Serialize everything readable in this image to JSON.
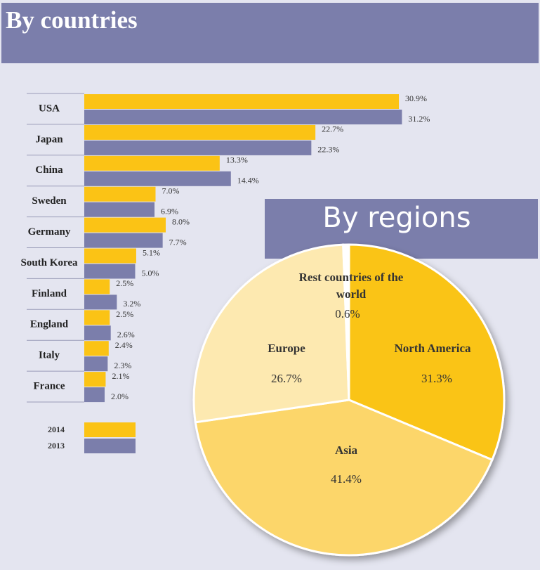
{
  "chart_data": [
    {
      "type": "hbar",
      "title": "By countries",
      "categories": [
        "USA",
        "Japan",
        "China",
        "Sweden",
        "Germany",
        "South Korea",
        "Finland",
        "England",
        "Italy",
        "France"
      ],
      "series": [
        {
          "name": "2014",
          "color": "#fbc315",
          "values": [
            30.9,
            22.7,
            13.3,
            7.0,
            8.0,
            5.1,
            2.5,
            2.5,
            2.4,
            2.1
          ],
          "value_labels": [
            "30.9%",
            "22.7%",
            "13.3%",
            "7.0%",
            "8.0%",
            "5.1%",
            "2.5%",
            "2.5%",
            "2.4%",
            "2.1%"
          ]
        },
        {
          "name": "2013",
          "color": "#7b7eab",
          "values": [
            31.2,
            22.3,
            14.4,
            6.9,
            7.7,
            5.0,
            3.2,
            2.6,
            2.3,
            2.0
          ],
          "value_labels": [
            "31.2%",
            "22.3%",
            "14.4%",
            "6.9%",
            "7.7%",
            "5.0%",
            "3.2%",
            "2.6%",
            "2.3%",
            "2.0%"
          ]
        }
      ]
    },
    {
      "type": "pie",
      "title": "By regions",
      "categories": [
        "North America",
        "Asia",
        "Europe",
        "Rest countries of the world"
      ],
      "values": [
        31.3,
        41.4,
        26.7,
        0.6
      ],
      "value_labels": [
        "31.3%",
        "41.4%",
        "26.7%",
        "0.6%"
      ],
      "colors": [
        "#fac417",
        "#fcd66a",
        "#fde9b0",
        "#ffffff"
      ]
    }
  ]
}
